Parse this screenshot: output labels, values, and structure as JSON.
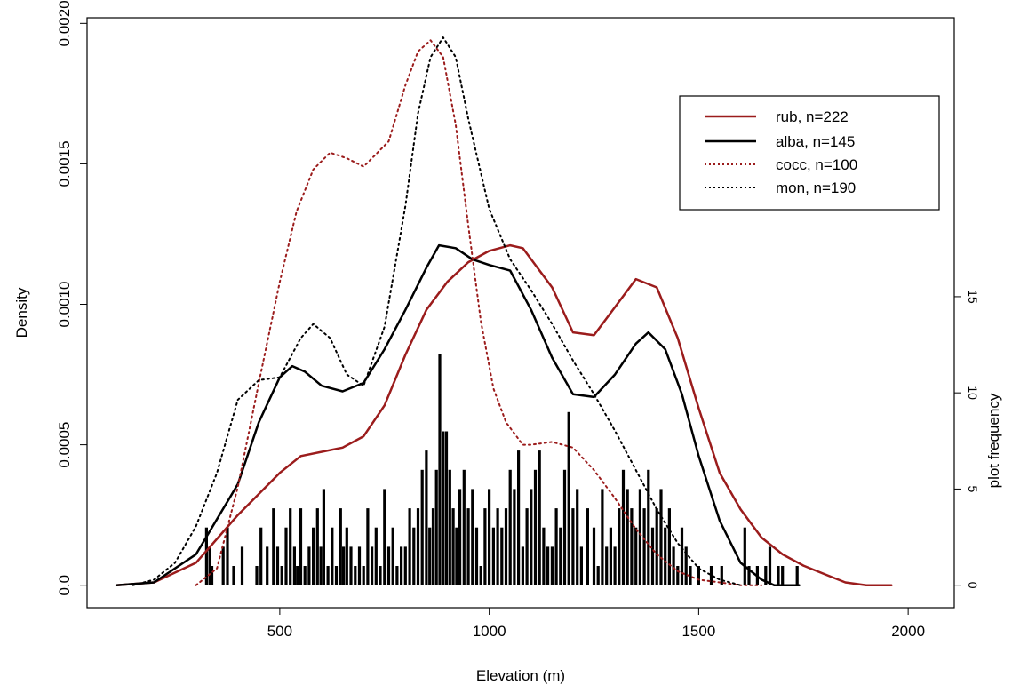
{
  "chart_data": {
    "type": "line",
    "title": "",
    "xlabel": "Elevation (m)",
    "ylabel": "Density",
    "y2label": "plot frequency",
    "xlim": [
      40,
      2110
    ],
    "ylim": [
      -8e-05,
      0.00202
    ],
    "y2lim": [
      -1.17,
      29.5
    ],
    "x_ticks": [
      500,
      1000,
      1500,
      2000
    ],
    "x_tick_labels": [
      "500",
      "1000",
      "1500",
      "2000"
    ],
    "y_ticks": [
      0,
      0.0005,
      0.001,
      0.0015,
      0.002
    ],
    "y_tick_labels": [
      "0.0",
      "0.0005",
      "0.0010",
      "0.0015",
      "0.0020"
    ],
    "y2_ticks": [
      0,
      5,
      10,
      15
    ],
    "y2_tick_labels": [
      "0",
      "5",
      "10",
      "15"
    ],
    "grid": false,
    "legend_position": "top-right",
    "colors": {
      "dark_red": "#9b1c1c",
      "black": "#000000"
    },
    "series": [
      {
        "name": "rub, n=222",
        "color": "#9b1c1c",
        "dash": "solid",
        "x": [
          110,
          200,
          300,
          400,
          500,
          550,
          650,
          700,
          750,
          800,
          850,
          900,
          950,
          1000,
          1050,
          1080,
          1150,
          1200,
          1250,
          1300,
          1350,
          1400,
          1450,
          1500,
          1550,
          1600,
          1650,
          1700,
          1750,
          1800,
          1850,
          1900,
          1960
        ],
        "y": [
          0,
          1e-05,
          8e-05,
          0.00025,
          0.0004,
          0.00046,
          0.00049,
          0.00053,
          0.00064,
          0.00082,
          0.00098,
          0.00108,
          0.00115,
          0.00119,
          0.00121,
          0.0012,
          0.00106,
          0.0009,
          0.00089,
          0.00099,
          0.00109,
          0.00106,
          0.00088,
          0.00063,
          0.0004,
          0.00027,
          0.00017,
          0.00011,
          7e-05,
          4e-05,
          1e-05,
          0,
          0
        ]
      },
      {
        "name": "alba, n=145",
        "color": "#000000",
        "dash": "solid",
        "x": [
          110,
          200,
          300,
          400,
          450,
          500,
          530,
          560,
          600,
          650,
          700,
          750,
          800,
          850,
          880,
          920,
          960,
          1000,
          1050,
          1100,
          1150,
          1200,
          1250,
          1300,
          1350,
          1380,
          1420,
          1460,
          1500,
          1550,
          1600,
          1650,
          1680,
          1740
        ],
        "y": [
          0,
          1e-05,
          0.00011,
          0.00036,
          0.00058,
          0.00074,
          0.00078,
          0.00076,
          0.00071,
          0.00069,
          0.00072,
          0.00084,
          0.00098,
          0.00113,
          0.00121,
          0.0012,
          0.00116,
          0.00114,
          0.00112,
          0.00098,
          0.00081,
          0.00068,
          0.00067,
          0.00075,
          0.00086,
          0.0009,
          0.00084,
          0.00068,
          0.00046,
          0.00023,
          8e-05,
          2e-05,
          0,
          0
        ]
      },
      {
        "name": "cocc, n=100",
        "color": "#9b1c1c",
        "dash": "dotted",
        "x": [
          300,
          350,
          400,
          450,
          500,
          540,
          580,
          620,
          660,
          700,
          760,
          800,
          830,
          860,
          890,
          920,
          950,
          980,
          1010,
          1040,
          1080,
          1100,
          1150,
          1200,
          1250,
          1300,
          1350,
          1400,
          1450,
          1500,
          1550,
          1600,
          1650
        ],
        "y": [
          0,
          6e-05,
          0.00035,
          0.00072,
          0.00108,
          0.00133,
          0.00148,
          0.00154,
          0.00152,
          0.00149,
          0.00158,
          0.00178,
          0.0019,
          0.00194,
          0.00188,
          0.00164,
          0.00128,
          0.00094,
          0.0007,
          0.00058,
          0.0005,
          0.0005,
          0.00051,
          0.00049,
          0.00041,
          0.00031,
          0.0002,
          0.00011,
          5e-05,
          2e-05,
          1e-05,
          0,
          0
        ]
      },
      {
        "name": "mon, n=190",
        "color": "#000000",
        "dash": "dotted",
        "x": [
          150,
          200,
          250,
          300,
          350,
          400,
          450,
          500,
          550,
          580,
          620,
          660,
          700,
          750,
          800,
          830,
          860,
          890,
          920,
          950,
          1000,
          1050,
          1100,
          1150,
          1200,
          1250,
          1300,
          1350,
          1400,
          1450,
          1500,
          1550,
          1600
        ],
        "y": [
          0,
          2e-05,
          8e-05,
          0.00021,
          0.0004,
          0.00066,
          0.00073,
          0.00074,
          0.00088,
          0.00093,
          0.00088,
          0.00075,
          0.00071,
          0.00092,
          0.00135,
          0.00168,
          0.00188,
          0.00195,
          0.00188,
          0.00166,
          0.00134,
          0.00116,
          0.00105,
          0.00093,
          0.0008,
          0.00068,
          0.00055,
          0.00041,
          0.00027,
          0.00015,
          6e-05,
          2e-05,
          0
        ]
      }
    ],
    "bars": {
      "axis": "secondary",
      "color": "#000000",
      "x": [
        325,
        333,
        338,
        365,
        375,
        390,
        410,
        445,
        455,
        470,
        485,
        495,
        505,
        515,
        525,
        535,
        542,
        550,
        560,
        570,
        580,
        590,
        598,
        605,
        615,
        625,
        635,
        645,
        652,
        660,
        670,
        680,
        690,
        700,
        710,
        720,
        730,
        740,
        750,
        760,
        770,
        780,
        790,
        800,
        810,
        820,
        830,
        840,
        850,
        858,
        866,
        874,
        882,
        890,
        898,
        906,
        914,
        922,
        930,
        940,
        950,
        960,
        970,
        980,
        990,
        1000,
        1010,
        1020,
        1030,
        1040,
        1050,
        1060,
        1070,
        1080,
        1090,
        1100,
        1110,
        1120,
        1130,
        1140,
        1150,
        1160,
        1170,
        1180,
        1190,
        1200,
        1210,
        1220,
        1235,
        1250,
        1260,
        1270,
        1280,
        1290,
        1300,
        1310,
        1320,
        1330,
        1340,
        1350,
        1360,
        1370,
        1380,
        1390,
        1400,
        1410,
        1420,
        1430,
        1440,
        1450,
        1460,
        1470,
        1480,
        1500,
        1530,
        1555,
        1610,
        1620,
        1640,
        1660,
        1670,
        1690,
        1700,
        1735
      ],
      "y": [
        3,
        2,
        1,
        2,
        3,
        1,
        2,
        1,
        3,
        2,
        4,
        2,
        1,
        3,
        4,
        2,
        1,
        4,
        1,
        2,
        3,
        4,
        2,
        5,
        1,
        3,
        1,
        4,
        2,
        3,
        2,
        1,
        2,
        1,
        4,
        2,
        3,
        1,
        5,
        2,
        3,
        1,
        2,
        2,
        4,
        3,
        4,
        6,
        7,
        3,
        4,
        6,
        12,
        8,
        8,
        6,
        4,
        3,
        5,
        6,
        4,
        5,
        3,
        1,
        4,
        5,
        3,
        4,
        3,
        4,
        6,
        5,
        7,
        2,
        4,
        5,
        6,
        7,
        3,
        2,
        2,
        4,
        3,
        6,
        9,
        4,
        5,
        2,
        4,
        3,
        1,
        5,
        2,
        3,
        2,
        4,
        6,
        5,
        4,
        3,
        5,
        4,
        6,
        3,
        4,
        5,
        3,
        4,
        2,
        1,
        3,
        2,
        1,
        1,
        1,
        1,
        3,
        1,
        1,
        1,
        2,
        1,
        1,
        1
      ]
    }
  }
}
